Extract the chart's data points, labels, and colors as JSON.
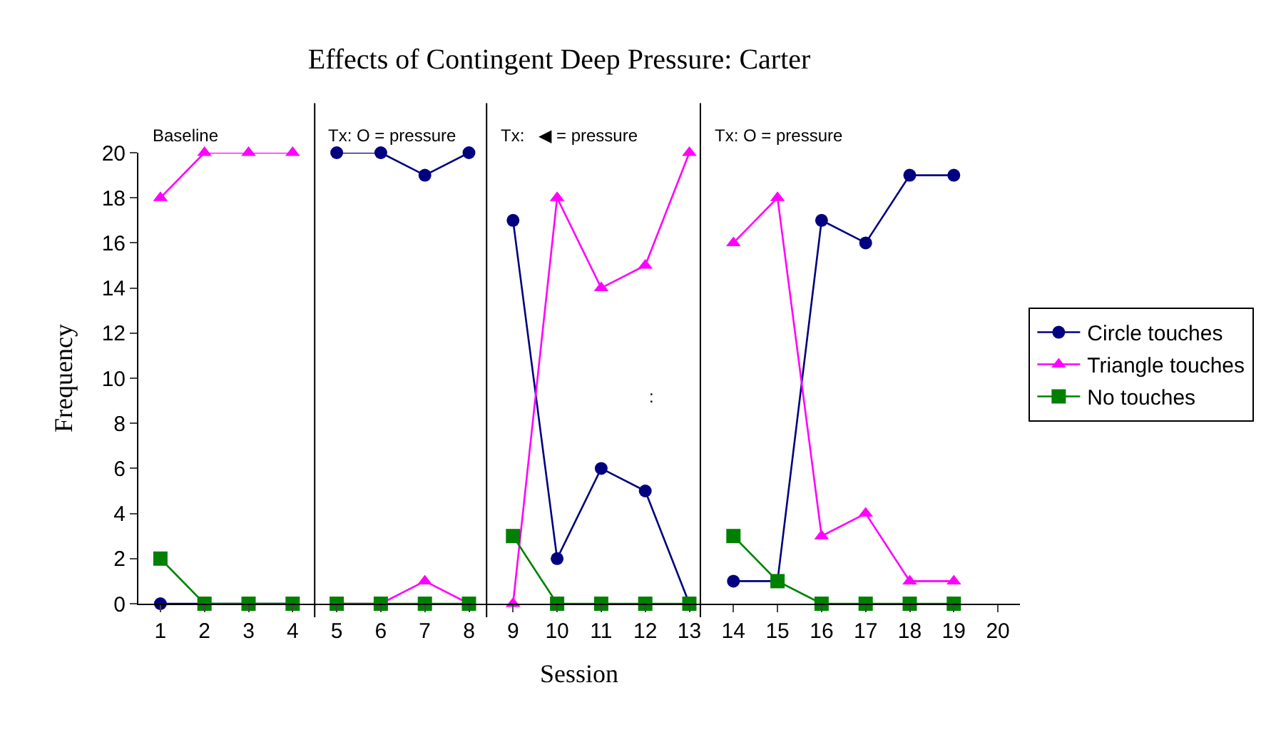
{
  "chart_data": {
    "type": "line",
    "title": "Effects of Contingent Deep Pressure: Carter",
    "xlabel": "Session",
    "ylabel": "Frequency",
    "x": [
      1,
      2,
      3,
      4,
      5,
      6,
      7,
      8,
      9,
      10,
      11,
      12,
      13,
      14,
      15,
      16,
      17,
      18,
      19
    ],
    "series": [
      {
        "name": "Circle touches",
        "color": "#000080",
        "marker": "circle",
        "values": [
          0,
          0,
          0,
          0,
          20,
          20,
          19,
          20,
          17,
          2,
          6,
          5,
          0,
          1,
          1,
          17,
          16,
          19,
          19
        ]
      },
      {
        "name": "Triangle touches",
        "color": "#ff00ff",
        "marker": "triangle",
        "values": [
          18,
          20,
          20,
          20,
          0,
          0,
          1,
          0,
          0,
          18,
          14,
          15,
          20,
          16,
          18,
          3,
          4,
          1,
          1
        ]
      },
      {
        "name": "No touches",
        "color": "#008000",
        "marker": "square",
        "values": [
          2,
          0,
          0,
          0,
          0,
          0,
          0,
          0,
          3,
          0,
          0,
          0,
          0,
          3,
          1,
          0,
          0,
          0,
          0
        ]
      }
    ],
    "xlim": [
      0.5,
      20.5
    ],
    "xticks": [
      1,
      2,
      3,
      4,
      5,
      6,
      7,
      8,
      9,
      10,
      11,
      12,
      13,
      14,
      15,
      16,
      17,
      18,
      19,
      20
    ],
    "ylim": [
      0,
      20
    ],
    "yticks": [
      0,
      2,
      4,
      6,
      8,
      10,
      12,
      14,
      16,
      18,
      20
    ],
    "ref_lines": [
      {
        "axis": "x",
        "value": 4.5,
        "color": "#000000"
      },
      {
        "axis": "x",
        "value": 8.4,
        "color": "#000000"
      },
      {
        "axis": "x",
        "value": 13.25,
        "color": "#000000"
      }
    ],
    "annotations": [
      "Baseline",
      "Tx: O = pressure",
      "Tx:   ◀ = pressure",
      "Tx: O = pressure",
      ":"
    ],
    "legend": "right",
    "line_style": "solid"
  }
}
